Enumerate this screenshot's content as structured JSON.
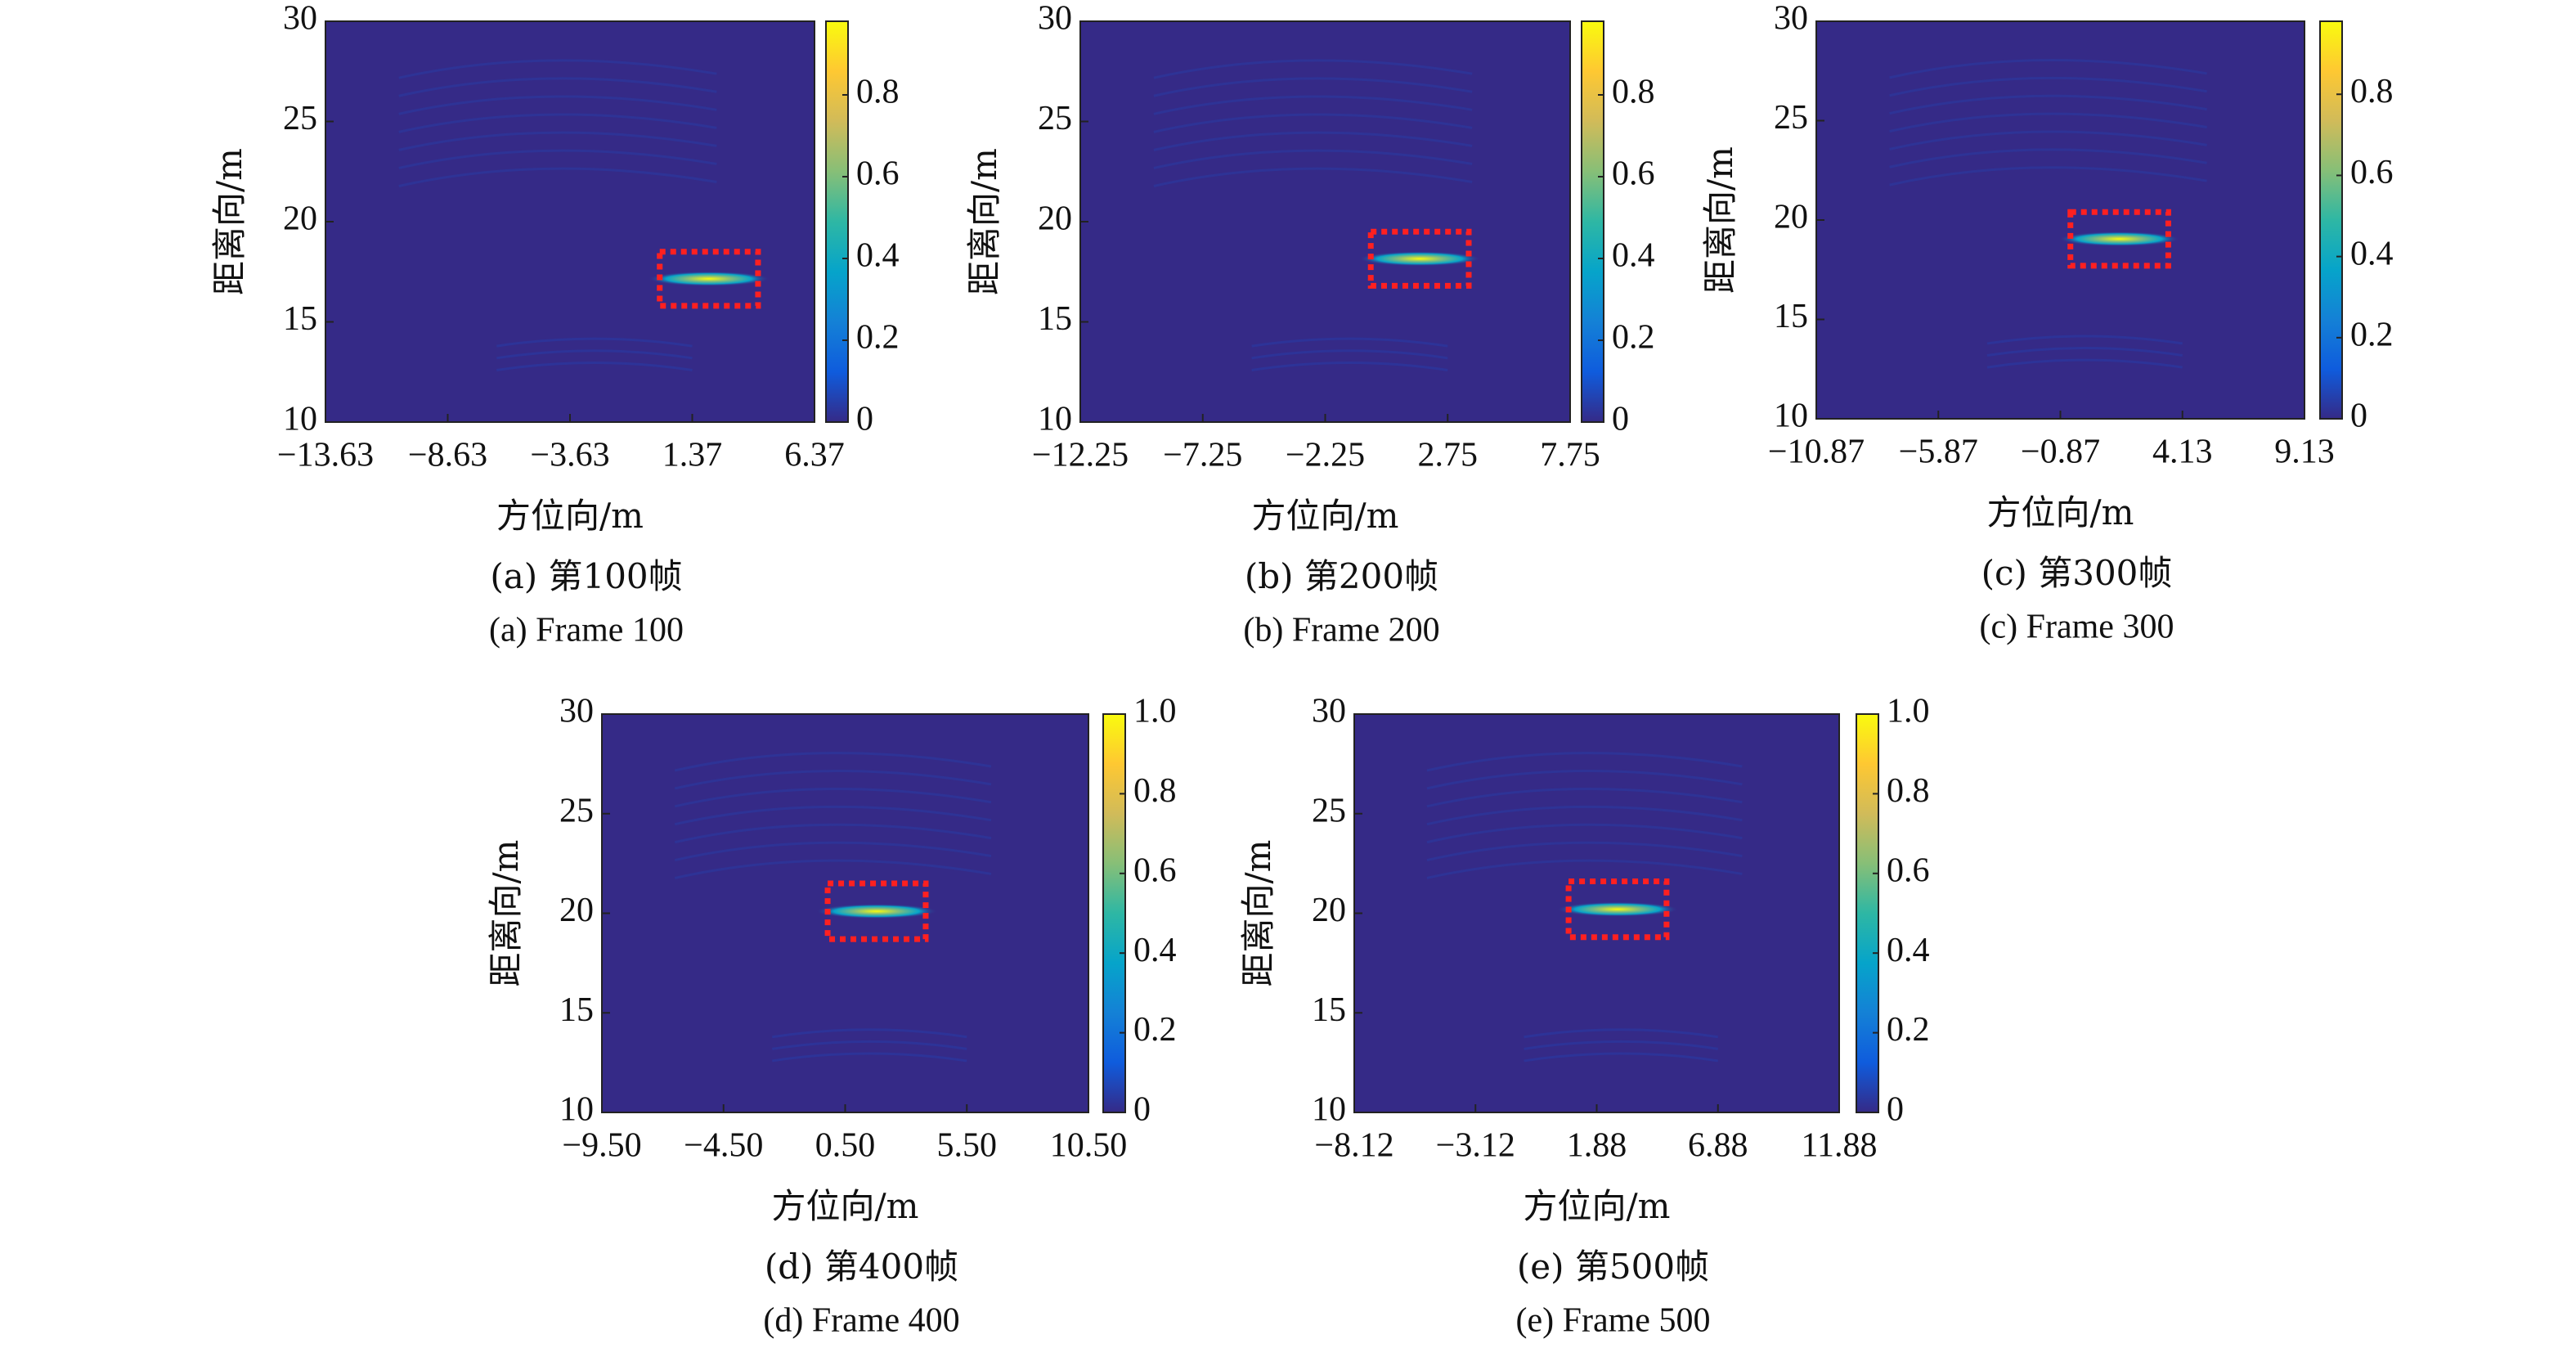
{
  "chart_data": [
    {
      "type": "heatmap",
      "xlabel": "方位向/m",
      "ylabel": "距离向/m",
      "caption": [
        "(a) 第100帧",
        "(a) Frame 100"
      ],
      "xlim": [
        -13.63,
        6.37
      ],
      "xticks": [
        {
          "value": -13.63,
          "label": "−13.63"
        },
        {
          "value": -8.63,
          "label": "−8.63"
        },
        {
          "value": -3.63,
          "label": "−3.63"
        },
        1.37,
        6.37
      ],
      "ylim": [
        10,
        30
      ],
      "yticks": [
        10,
        15,
        20,
        25,
        30
      ],
      "clim": [
        0,
        0.98
      ],
      "cticks": [
        0,
        0.2,
        0.4,
        0.6,
        0.8
      ],
      "target_box": {
        "x": [
          0.04,
          4.06
        ],
        "y": [
          15.8,
          18.5
        ],
        "color": "#ff2020"
      },
      "colormap": [
        "#352a87",
        "#0f5cdd",
        "#1481d6",
        "#06a4ca",
        "#2eb7a4",
        "#87bf77",
        "#d1bb59",
        "#fec832",
        "#f9fb0e"
      ]
    },
    {
      "type": "heatmap",
      "xlabel": "方位向/m",
      "ylabel": "距离向/m",
      "caption": [
        "(b) 第200帧",
        "(b) Frame 200"
      ],
      "xlim": [
        -12.25,
        7.75
      ],
      "xticks": [
        {
          "value": -12.25,
          "label": "−12.25"
        },
        {
          "value": -7.25,
          "label": "−7.25"
        },
        {
          "value": -2.25,
          "label": "−2.25"
        },
        2.75,
        7.75
      ],
      "ylim": [
        10,
        30
      ],
      "yticks": [
        10,
        15,
        20,
        25,
        30
      ],
      "clim": [
        0,
        0.98
      ],
      "cticks": [
        0,
        0.2,
        0.4,
        0.6,
        0.8
      ],
      "target_box": {
        "x": [
          -0.39,
          3.61
        ],
        "y": [
          16.8,
          19.5
        ],
        "color": "#ff2020"
      },
      "colormap": [
        "#352a87",
        "#0f5cdd",
        "#1481d6",
        "#06a4ca",
        "#2eb7a4",
        "#87bf77",
        "#d1bb59",
        "#fec832",
        "#f9fb0e"
      ]
    },
    {
      "type": "heatmap",
      "xlabel": "方位向/m",
      "ylabel": "距离向/m",
      "caption": [
        "(c) 第300帧",
        "(c) Frame 300"
      ],
      "xlim": [
        -10.87,
        9.13
      ],
      "xticks": [
        {
          "value": -10.87,
          "label": "−10.87"
        },
        {
          "value": -5.87,
          "label": "−5.87"
        },
        {
          "value": -0.87,
          "label": "−0.87"
        },
        4.13,
        9.13
      ],
      "ylim": [
        10,
        30
      ],
      "yticks": [
        10,
        15,
        20,
        25,
        30
      ],
      "clim": [
        0,
        0.98
      ],
      "cticks": [
        0,
        0.2,
        0.4,
        0.6,
        0.8
      ],
      "target_box": {
        "x": [
          -0.46,
          3.55
        ],
        "y": [
          17.7,
          20.4
        ],
        "color": "#ff2020"
      },
      "colormap": [
        "#352a87",
        "#0f5cdd",
        "#1481d6",
        "#06a4ca",
        "#2eb7a4",
        "#87bf77",
        "#d1bb59",
        "#fec832",
        "#f9fb0e"
      ]
    },
    {
      "type": "heatmap",
      "xlabel": "方位向/m",
      "ylabel": "距离向/m",
      "caption": [
        "(d) 第400帧",
        "(d) Frame 400"
      ],
      "xlim": [
        -9.5,
        10.5
      ],
      "xticks": [
        {
          "value": -9.5,
          "label": "−9.50"
        },
        {
          "value": -4.5,
          "label": "−4.50"
        },
        {
          "value": 0.5,
          "label": "0.50"
        },
        {
          "value": 5.5,
          "label": "5.50"
        },
        {
          "value": 10.5,
          "label": "10.50"
        }
      ],
      "ylim": [
        10,
        30
      ],
      "yticks": [
        10,
        15,
        20,
        25,
        30
      ],
      "clim": [
        0,
        1
      ],
      "cticks": [
        0,
        0.2,
        0.4,
        0.6,
        0.8,
        {
          "value": 1,
          "label": "1.0"
        }
      ],
      "target_box": {
        "x": [
          -0.22,
          3.81
        ],
        "y": [
          18.7,
          21.5
        ],
        "color": "#ff2020"
      },
      "colormap": [
        "#352a87",
        "#0f5cdd",
        "#1481d6",
        "#06a4ca",
        "#2eb7a4",
        "#87bf77",
        "#d1bb59",
        "#fec832",
        "#f9fb0e"
      ]
    },
    {
      "type": "heatmap",
      "xlabel": "方位向/m",
      "ylabel": "距离向/m",
      "caption": [
        "(e) 第500帧",
        "(e) Frame 500"
      ],
      "xlim": [
        -8.12,
        11.88
      ],
      "xticks": [
        {
          "value": -8.12,
          "label": "−8.12"
        },
        {
          "value": -3.12,
          "label": "−3.12"
        },
        1.88,
        6.88,
        11.88
      ],
      "ylim": [
        10,
        30
      ],
      "yticks": [
        10,
        15,
        20,
        25,
        30
      ],
      "clim": [
        0,
        1
      ],
      "cticks": [
        0,
        0.2,
        0.4,
        0.6,
        0.8,
        {
          "value": 1,
          "label": "1.0"
        }
      ],
      "target_box": {
        "x": [
          0.72,
          4.76
        ],
        "y": [
          18.8,
          21.6
        ],
        "color": "#ff2020"
      },
      "colormap": [
        "#352a87",
        "#0f5cdd",
        "#1481d6",
        "#06a4ca",
        "#2eb7a4",
        "#87bf77",
        "#d1bb59",
        "#fec832",
        "#f9fb0e"
      ]
    }
  ]
}
